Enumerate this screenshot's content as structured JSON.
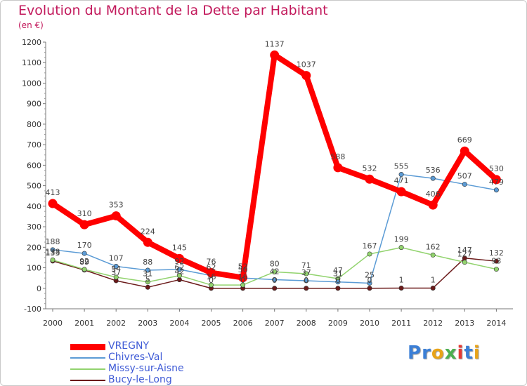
{
  "header": {
    "title": "Evolution du Montant de la Dette par Habitant",
    "subtitle": "(en €)"
  },
  "logo": {
    "text": "Proxiti",
    "colors": [
      "#3b7fd6",
      "#3b7fd6",
      "#e8a318",
      "#4caf50",
      "#e53935",
      "#3b7fd6",
      "#e8a318"
    ]
  },
  "chart_data": {
    "type": "line",
    "x": [
      2000,
      2001,
      2002,
      2003,
      2004,
      2005,
      2006,
      2007,
      2008,
      2009,
      2010,
      2011,
      2012,
      2013,
      2014
    ],
    "ylim": [
      -100,
      1200
    ],
    "yticks": [
      -100,
      0,
      100,
      200,
      300,
      400,
      500,
      600,
      700,
      800,
      900,
      1000,
      1100,
      1200
    ],
    "grid": false,
    "legend_position": "bottom-left",
    "series": [
      {
        "name": "VREGNY",
        "color": "#ff0000",
        "values": [
          413,
          310,
          353,
          224,
          145,
          76,
          52,
          1137,
          1037,
          588,
          532,
          471,
          406,
          669,
          530
        ]
      },
      {
        "name": "Chivres-Val",
        "color": "#5b9bd5",
        "values": [
          188,
          170,
          107,
          88,
          92,
          62,
          50,
          42,
          37,
          31,
          25,
          555,
          536,
          507,
          479
        ]
      },
      {
        "name": "Missy-sur-Aisne",
        "color": "#92d36e",
        "values": [
          138,
          92,
          54,
          31,
          62,
          16,
          16,
          80,
          71,
          47,
          167,
          199,
          162,
          127,
          93
        ]
      },
      {
        "name": "Bucy-le-Long",
        "color": "#6b1a1a",
        "values": [
          133,
          89,
          37,
          5,
          42,
          0,
          0,
          0,
          0,
          0,
          0,
          1,
          1,
          147,
          132
        ]
      }
    ]
  }
}
